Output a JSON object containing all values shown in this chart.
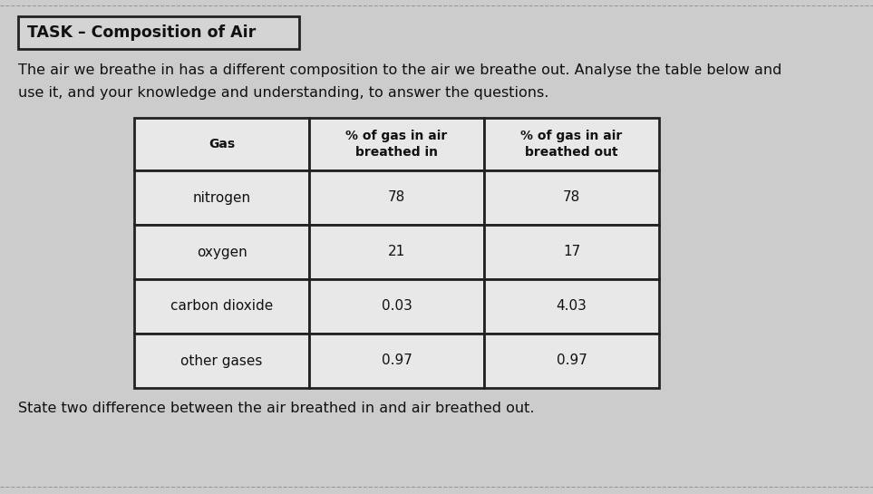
{
  "title_box_text": "TASK – Composition of Air",
  "paragraph_line1": "The air we breathe in has a different composition to the air we breathe out. Analyse the table below and",
  "paragraph_line2": "use it, and your knowledge and understanding, to answer the questions.",
  "footer_text": "State two difference between the air breathed in and air breathed out.",
  "col_headers": [
    "Gas",
    "% of gas in air\nbreathed in",
    "% of gas in air\nbreathed out"
  ],
  "rows": [
    [
      "nitrogen",
      "78",
      "78"
    ],
    [
      "oxygen",
      "21",
      "17"
    ],
    [
      "carbon dioxide",
      "0.03",
      "4.03"
    ],
    [
      "other gases",
      "0.97",
      "0.97"
    ]
  ],
  "bg_color": "#cccccc",
  "cell_bg": "#e8e8e8",
  "border_color": "#222222",
  "text_color": "#111111",
  "title_box_bg": "#d4d4d4",
  "title_box_border": "#222222",
  "top_line_color": "#999999",
  "bottom_line_color": "#999999",
  "fig_width": 9.63,
  "fig_height": 5.45,
  "dpi": 100
}
